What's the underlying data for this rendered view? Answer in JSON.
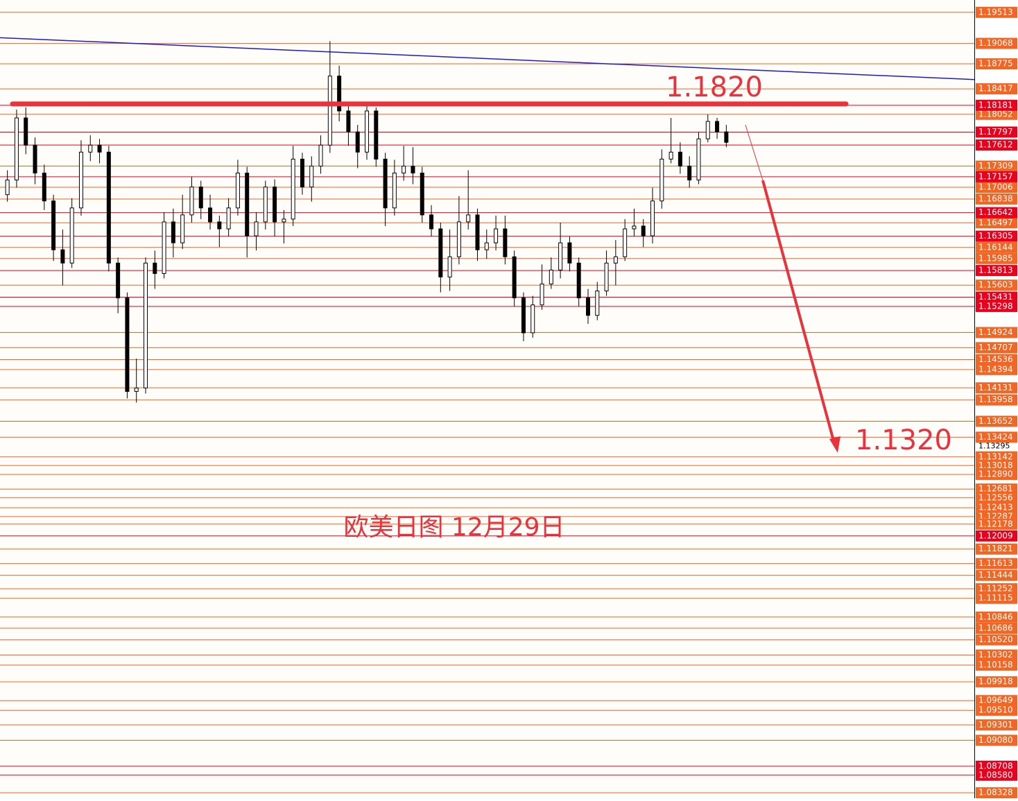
{
  "chart_data": {
    "type": "candlestick",
    "title": "欧美日图  12月29日",
    "ylim": [
      1.0825,
      1.1969
    ],
    "candle_colors": {
      "up": "#ffffff",
      "down": "#000000",
      "outline": "#000000"
    },
    "level_color": "#f26522",
    "key_color": "#e8001c",
    "yticks": [
      1.19513,
      1.19068,
      1.18775,
      1.18417,
      1.18052,
      1.17309,
      1.17006,
      1.16838,
      1.16497,
      1.16144,
      1.15985,
      1.15603,
      1.14924,
      1.14707,
      1.14536,
      1.14394,
      1.14131,
      1.13958,
      1.13652,
      1.13424,
      1.13142,
      1.13018,
      {
        "value": 1.1289,
        "label": "1.12890"
      },
      1.12681,
      1.12556,
      1.12413,
      1.12287,
      1.12178,
      1.11821,
      1.11613,
      1.11444,
      1.11252,
      1.11115,
      1.10846,
      1.10686,
      {
        "value": 1.1052,
        "label": "1.10520"
      },
      1.10302,
      1.10158,
      1.09918,
      1.09649,
      {
        "value": 1.0951,
        "label": "1.09510"
      },
      1.09301,
      {
        "value": 1.0908,
        "label": "1.09080"
      },
      1.08328
    ],
    "key_levels": [
      1.18181,
      1.17797,
      1.17612,
      1.17157,
      1.16642,
      1.16305,
      1.15813,
      1.15431,
      1.15298,
      1.12009,
      1.08708,
      {
        "value": 1.0858,
        "label": "1.08580"
      }
    ],
    "current_price": 1.13295,
    "trendline": {
      "color": "#1a1acc",
      "values": [
        1.1915,
        1.1855
      ]
    },
    "resistance": {
      "value": 1.182,
      "label": "1.1820",
      "color": "#e8323c"
    },
    "target": {
      "from": 1.179,
      "value": 1.132,
      "label": "1.1320",
      "color": "#e8323c"
    },
    "candles": [
      [
        1.169,
        1.1725,
        1.168,
        1.1711
      ],
      [
        1.1711,
        1.1812,
        1.17,
        1.18
      ],
      [
        1.18,
        1.1815,
        1.1748,
        1.1761
      ],
      [
        1.1761,
        1.1772,
        1.1705,
        1.1721
      ],
      [
        1.1721,
        1.1733,
        1.1668,
        1.1681
      ],
      [
        1.1681,
        1.169,
        1.1595,
        1.1611
      ],
      [
        1.1611,
        1.164,
        1.156,
        1.1592
      ],
      [
        1.1592,
        1.1685,
        1.1585,
        1.1671
      ],
      [
        1.1671,
        1.1768,
        1.166,
        1.1751
      ],
      [
        1.1751,
        1.1775,
        1.1738,
        1.1761
      ],
      [
        1.1761,
        1.177,
        1.1735,
        1.1751
      ],
      [
        1.1751,
        1.176,
        1.158,
        1.1592
      ],
      [
        1.1592,
        1.16,
        1.152,
        1.1542
      ],
      [
        1.1542,
        1.155,
        1.1398,
        1.1408
      ],
      [
        1.1408,
        1.1455,
        1.1392,
        1.1413
      ],
      [
        1.1413,
        1.16,
        1.1405,
        1.1592
      ],
      [
        1.1592,
        1.161,
        1.1555,
        1.1577
      ],
      [
        1.1577,
        1.1665,
        1.157,
        1.1651
      ],
      [
        1.1651,
        1.167,
        1.16,
        1.1621
      ],
      [
        1.1621,
        1.169,
        1.1612,
        1.1661
      ],
      [
        1.1661,
        1.1716,
        1.165,
        1.1701
      ],
      [
        1.1701,
        1.171,
        1.1655,
        1.1671
      ],
      [
        1.1671,
        1.169,
        1.164,
        1.1651
      ],
      [
        1.1651,
        1.166,
        1.1615,
        1.1641
      ],
      [
        1.1641,
        1.1685,
        1.163,
        1.1671
      ],
      [
        1.1671,
        1.174,
        1.166,
        1.1721
      ],
      [
        1.1721,
        1.173,
        1.16,
        1.1631
      ],
      [
        1.1631,
        1.1665,
        1.161,
        1.1651
      ],
      [
        1.1651,
        1.171,
        1.164,
        1.1701
      ],
      [
        1.1701,
        1.1712,
        1.163,
        1.1651
      ],
      [
        1.1651,
        1.1668,
        1.162,
        1.1655
      ],
      [
        1.1655,
        1.176,
        1.1645,
        1.1741
      ],
      [
        1.1741,
        1.175,
        1.169,
        1.1701
      ],
      [
        1.1701,
        1.1745,
        1.168,
        1.1731
      ],
      [
        1.1731,
        1.1775,
        1.172,
        1.1761
      ],
      [
        1.1761,
        1.191,
        1.175,
        1.186
      ],
      [
        1.186,
        1.1875,
        1.1795,
        1.181
      ],
      [
        1.181,
        1.182,
        1.176,
        1.178
      ],
      [
        1.178,
        1.179,
        1.1728,
        1.1751
      ],
      [
        1.1751,
        1.1818,
        1.174,
        1.181
      ],
      [
        1.181,
        1.1815,
        1.173,
        1.1741
      ],
      [
        1.1741,
        1.175,
        1.1645,
        1.1671
      ],
      [
        1.1671,
        1.174,
        1.166,
        1.1721
      ],
      [
        1.1721,
        1.176,
        1.171,
        1.1731
      ],
      [
        1.1731,
        1.1758,
        1.1705,
        1.1721
      ],
      [
        1.1721,
        1.173,
        1.165,
        1.1661
      ],
      [
        1.1661,
        1.1675,
        1.163,
        1.1641
      ],
      [
        1.1641,
        1.165,
        1.155,
        1.1572
      ],
      [
        1.1572,
        1.164,
        1.1552,
        1.1601
      ],
      [
        1.1601,
        1.1688,
        1.159,
        1.1651
      ],
      [
        1.1651,
        1.1725,
        1.164,
        1.1661
      ],
      [
        1.1661,
        1.167,
        1.1595,
        1.1611
      ],
      [
        1.1611,
        1.164,
        1.1598,
        1.1621
      ],
      [
        1.1621,
        1.166,
        1.161,
        1.1641
      ],
      [
        1.1641,
        1.166,
        1.159,
        1.1601
      ],
      [
        1.1601,
        1.161,
        1.153,
        1.1542
      ],
      [
        1.1542,
        1.155,
        1.148,
        1.1492
      ],
      [
        1.1492,
        1.1545,
        1.1485,
        1.1532
      ],
      [
        1.1532,
        1.159,
        1.1525,
        1.1562
      ],
      [
        1.1562,
        1.16,
        1.1555,
        1.1582
      ],
      [
        1.1582,
        1.165,
        1.157,
        1.1621
      ],
      [
        1.1621,
        1.163,
        1.158,
        1.1592
      ],
      [
        1.1592,
        1.16,
        1.153,
        1.1542
      ],
      [
        1.1542,
        1.1555,
        1.1505,
        1.1517
      ],
      [
        1.1517,
        1.1565,
        1.151,
        1.1552
      ],
      [
        1.1552,
        1.161,
        1.1545,
        1.1592
      ],
      [
        1.1592,
        1.1625,
        1.156,
        1.1601
      ],
      [
        1.1601,
        1.1655,
        1.1595,
        1.1641
      ],
      [
        1.1641,
        1.167,
        1.163,
        1.1645
      ],
      [
        1.1645,
        1.1655,
        1.1615,
        1.1631
      ],
      [
        1.1631,
        1.17,
        1.162,
        1.1681
      ],
      [
        1.1681,
        1.1755,
        1.167,
        1.1741
      ],
      [
        1.1741,
        1.18,
        1.1735,
        1.1751
      ],
      [
        1.1751,
        1.1765,
        1.172,
        1.1731
      ],
      [
        1.1731,
        1.1745,
        1.17,
        1.1711
      ],
      [
        1.1711,
        1.178,
        1.1705,
        1.177
      ],
      [
        1.177,
        1.1805,
        1.1765,
        1.1795
      ],
      [
        1.1795,
        1.18,
        1.177,
        1.178
      ],
      [
        1.178,
        1.179,
        1.1758,
        1.1765
      ]
    ]
  }
}
